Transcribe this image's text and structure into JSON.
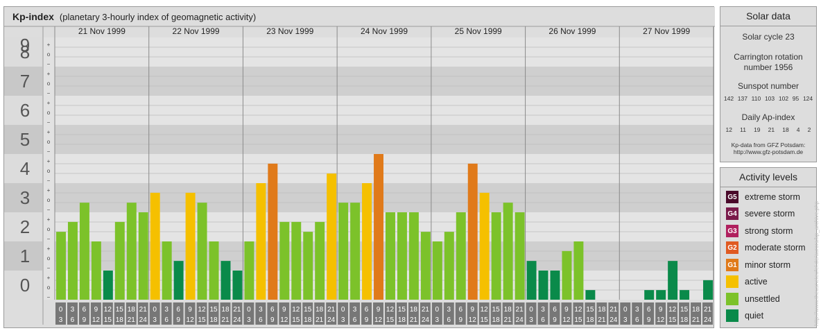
{
  "title": {
    "main": "Kp-index",
    "sub": "(planetary 3-hourly index of geomagnetic activity)"
  },
  "chart_data": {
    "type": "bar",
    "ylim": [
      0,
      9
    ],
    "y_ticks": [
      "0",
      "1",
      "2",
      "3",
      "4",
      "5",
      "6",
      "7",
      "8",
      "9"
    ],
    "minor_marks": [
      "−",
      "o",
      "+"
    ],
    "days": [
      "21 Nov 1999",
      "22 Nov 1999",
      "23 Nov 1999",
      "24 Nov 1999",
      "25 Nov 1999",
      "26 Nov 1999",
      "27 Nov 1999"
    ],
    "interval_starts": [
      "0",
      "3",
      "6",
      "9",
      "12",
      "15",
      "18",
      "21"
    ],
    "interval_ends": [
      "3",
      "6",
      "9",
      "12",
      "15",
      "18",
      "21",
      "24"
    ],
    "values": [
      [
        2.33,
        2.67,
        3.33,
        2.0,
        1.0,
        2.67,
        3.33,
        3.0
      ],
      [
        3.67,
        2.0,
        1.33,
        3.67,
        3.33,
        2.0,
        1.33,
        1.0
      ],
      [
        2.0,
        4.0,
        4.67,
        2.67,
        2.67,
        2.33,
        2.67,
        4.33
      ],
      [
        3.33,
        3.33,
        4.0,
        5.0,
        3.0,
        3.0,
        3.0,
        2.33
      ],
      [
        2.0,
        2.33,
        3.0,
        4.67,
        3.67,
        3.0,
        3.33,
        3.0
      ],
      [
        1.33,
        1.0,
        1.0,
        1.67,
        2.0,
        0.33,
        0.0,
        0.0
      ],
      [
        0.0,
        0.0,
        0.33,
        0.33,
        1.33,
        0.33,
        0.0,
        0.67
      ]
    ]
  },
  "solar": {
    "title": "Solar data",
    "cycle": "Solar cycle 23",
    "carrington_line1": "Carrington rotation",
    "carrington_line2": "number 1956",
    "sunspot_label": "Sunspot number",
    "sunspot_values": [
      "142",
      "137",
      "110",
      "103",
      "102",
      "95",
      "124"
    ],
    "ap_label": "Daily Ap-index",
    "ap_values": [
      "12",
      "11",
      "19",
      "21",
      "18",
      "4",
      "2"
    ],
    "credit_line1": "Kp-data from  GFZ Potsdam:",
    "credit_line2": "http://www.gfz-potsdam.de"
  },
  "activity": {
    "title": "Activity levels",
    "levels": [
      {
        "code": "G5",
        "label": "extreme storm",
        "color": "#4a0a2a"
      },
      {
        "code": "G4",
        "label": "severe storm",
        "color": "#7a1a4a"
      },
      {
        "code": "G3",
        "label": "strong storm",
        "color": "#b0205e"
      },
      {
        "code": "G2",
        "label": "moderate storm",
        "color": "#e05a22"
      },
      {
        "code": "G1",
        "label": "minor storm",
        "color": "#e07a1a"
      },
      {
        "code": "",
        "label": "active",
        "color": "#f5c000"
      },
      {
        "code": "",
        "label": "unsettled",
        "color": "#7cc22a"
      },
      {
        "code": "",
        "label": "quiet",
        "color": "#0a8a4a"
      }
    ]
  },
  "side_credit": "http://www.theusneteufel.de/aurora/kp_archive.php"
}
